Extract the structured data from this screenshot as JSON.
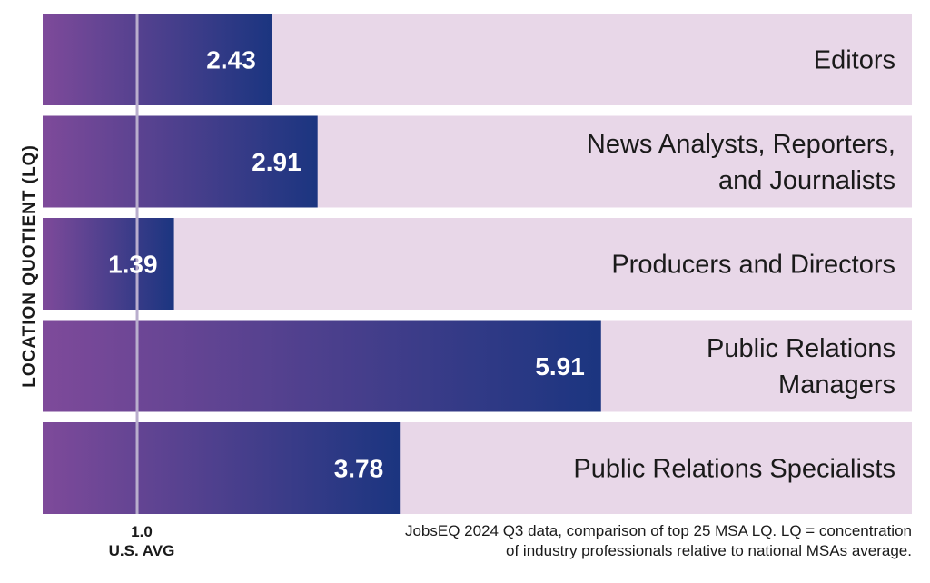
{
  "chart_data": {
    "type": "bar",
    "orientation": "horizontal",
    "ylabel": "LOCATION QUOTIENT (LQ)",
    "categories": [
      [
        "Editors"
      ],
      [
        "News Analysts, Reporters,",
        "and Journalists"
      ],
      [
        "Producers and Directors"
      ],
      [
        "Public Relations",
        "Managers"
      ],
      [
        "Public Relations Specialists"
      ]
    ],
    "values": [
      2.43,
      2.91,
      1.39,
      5.91,
      3.78
    ],
    "value_labels": [
      "2.43",
      "2.91",
      "1.39",
      "5.91",
      "3.78"
    ],
    "xlim": [
      0,
      9.2
    ],
    "reference": {
      "value": 1.0,
      "label_line1": "1.0",
      "label_line2": "U.S. AVG"
    },
    "footnote": {
      "line1": "JobsEQ 2024 Q3 data, comparison of top 25 MSA LQ. LQ = concentration",
      "line2": "of industry professionals relative to national MSAs average."
    },
    "colors": {
      "track": "#e8d7e8",
      "bar_start": "#7e4a9a",
      "bar_end": "#1b3580",
      "reference_line": "#b9aecd",
      "value_text": "#ffffff",
      "category_text": "#1a1a1a"
    }
  }
}
